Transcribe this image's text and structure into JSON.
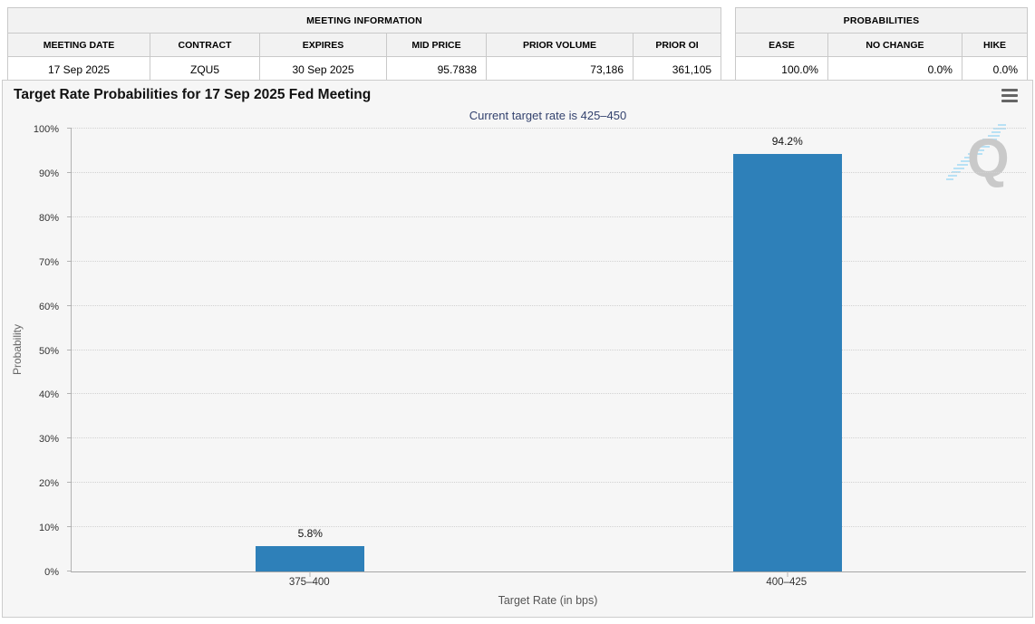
{
  "meeting_information": {
    "title": "MEETING INFORMATION",
    "columns": [
      "MEETING DATE",
      "CONTRACT",
      "EXPIRES",
      "MID PRICE",
      "PRIOR VOLUME",
      "PRIOR OI"
    ],
    "row": {
      "meeting_date": "17 Sep 2025",
      "contract": "ZQU5",
      "expires": "30 Sep 2025",
      "mid_price": "95.7838",
      "prior_volume": "73,186",
      "prior_oi": "361,105"
    }
  },
  "probabilities": {
    "title": "PROBABILITIES",
    "columns": [
      "EASE",
      "NO CHANGE",
      "HIKE"
    ],
    "row": {
      "ease": "100.0%",
      "no_change": "0.0%",
      "hike": "0.0%"
    }
  },
  "chart": {
    "title": "Target Rate Probabilities for 17 Sep 2025 Fed Meeting",
    "subtitle": "Current target rate is 425–450",
    "watermark_letter": "Q",
    "colors": {
      "bar": "#2e80b9",
      "subtitle_text": "#33426e",
      "panel_background": "#f6f6f6"
    }
  },
  "chart_data": {
    "type": "bar",
    "title": "Target Rate Probabilities for 17 Sep 2025 Fed Meeting",
    "subtitle": "Current target rate is 425–450",
    "categories": [
      "375–400",
      "400–425"
    ],
    "values": [
      5.8,
      94.2
    ],
    "value_labels": [
      "5.8%",
      "94.2%"
    ],
    "xlabel": "Target Rate (in bps)",
    "ylabel": "Probability",
    "ylim": [
      0,
      100
    ],
    "yticks": [
      "0%",
      "10%",
      "20%",
      "30%",
      "40%",
      "50%",
      "60%",
      "70%",
      "80%",
      "90%",
      "100%"
    ],
    "grid": "dotted horizontal gridlines",
    "legend": "none",
    "bar_color": "#2e80b9"
  }
}
